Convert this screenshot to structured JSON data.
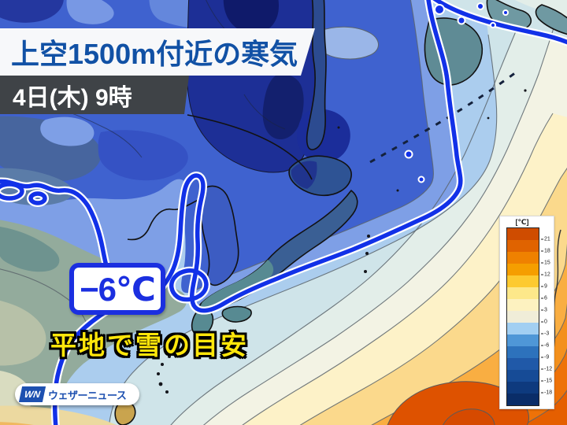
{
  "header": {
    "title": "上空1500m付近の寒気",
    "datetime": "4日(木) 9時"
  },
  "annotations": {
    "temp_label": "−6℃",
    "caption": "平地で雪の目安"
  },
  "branding": {
    "logo_mark": "WN",
    "logo_text": "ウェザーニュース"
  },
  "legend": {
    "unit": "[℃]",
    "ticks": [
      "21",
      "18",
      "15",
      "12",
      "9",
      "6",
      "3",
      "0",
      "-3",
      "-6",
      "-9",
      "-12",
      "-15",
      "-18"
    ],
    "colors": [
      "#cf4c00",
      "#e06300",
      "#ef8100",
      "#f59e00",
      "#fdca30",
      "#fde88a",
      "#fdf2c0",
      "#f0edd8",
      "#a2cff2",
      "#4f97d7",
      "#2d72bc",
      "#2059a8",
      "#164b96",
      "#0e3a7e",
      "#0a2d68"
    ]
  },
  "colors": {
    "title_text": "#1151a5",
    "banner_bg": "#f7f8fa",
    "date_bg": "#3f4347",
    "date_text": "#ffffff",
    "label_blue": "#1b2fe0",
    "caption_yellow": "#ffe60a",
    "logo_blue": "#1d50b0",
    "isoline_blue": "#1231e8"
  }
}
